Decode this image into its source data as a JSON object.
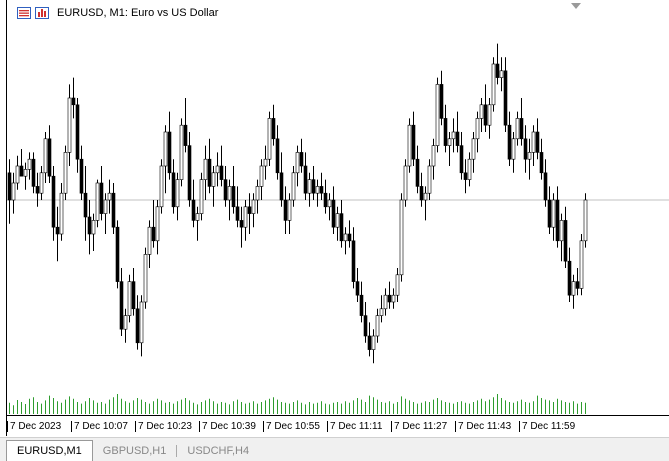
{
  "window": {
    "title": "EURUSD, M1:  Euro vs US Dollar"
  },
  "icons": {
    "menu": "chart-window-menu-icon",
    "chart": "bar-chart-icon",
    "scroll": "scroll-marker-triangle-icon"
  },
  "colors": {
    "candle_up_body": "#ffffff",
    "candle_down_body": "#000000",
    "candle_outline": "#000000",
    "volume": "#2e9c2e",
    "price_line": "#c0c0c0",
    "grid_line": "#000000"
  },
  "time_axis": {
    "labels": [
      "7 Dec 2023",
      "7 Dec 10:07",
      "7 Dec 10:23",
      "7 Dec 10:39",
      "7 Dec 10:55",
      "7 Dec 11:11",
      "7 Dec 11:27",
      "7 Dec 11:43",
      "7 Dec 11:59"
    ]
  },
  "tabs": [
    {
      "label": "EURUSD,M1",
      "active": true
    },
    {
      "label": "GBPUSD,H1",
      "active": false
    },
    {
      "label": "USDCHF,H4",
      "active": false
    }
  ],
  "chart_data": {
    "type": "candlestick",
    "symbol": "EURUSD",
    "timeframe": "M1",
    "bid_level": 0.5,
    "candles": [
      [
        0.58,
        0.62,
        0.43,
        0.5
      ],
      [
        0.5,
        0.58,
        0.46,
        0.55
      ],
      [
        0.55,
        0.63,
        0.53,
        0.6
      ],
      [
        0.6,
        0.65,
        0.57,
        0.57
      ],
      [
        0.57,
        0.61,
        0.53,
        0.59
      ],
      [
        0.59,
        0.64,
        0.56,
        0.62
      ],
      [
        0.62,
        0.64,
        0.52,
        0.54
      ],
      [
        0.54,
        0.58,
        0.48,
        0.52
      ],
      [
        0.52,
        0.6,
        0.5,
        0.58
      ],
      [
        0.58,
        0.7,
        0.55,
        0.68
      ],
      [
        0.68,
        0.72,
        0.55,
        0.57
      ],
      [
        0.57,
        0.6,
        0.38,
        0.42
      ],
      [
        0.42,
        0.48,
        0.32,
        0.4
      ],
      [
        0.4,
        0.55,
        0.38,
        0.52
      ],
      [
        0.52,
        0.66,
        0.5,
        0.64
      ],
      [
        0.64,
        0.84,
        0.6,
        0.8
      ],
      [
        0.8,
        0.86,
        0.74,
        0.78
      ],
      [
        0.78,
        0.8,
        0.58,
        0.62
      ],
      [
        0.62,
        0.66,
        0.5,
        0.52
      ],
      [
        0.52,
        0.6,
        0.38,
        0.45
      ],
      [
        0.45,
        0.5,
        0.34,
        0.4
      ],
      [
        0.4,
        0.46,
        0.35,
        0.44
      ],
      [
        0.44,
        0.56,
        0.42,
        0.55
      ],
      [
        0.55,
        0.6,
        0.44,
        0.46
      ],
      [
        0.46,
        0.52,
        0.4,
        0.5
      ],
      [
        0.5,
        0.56,
        0.46,
        0.52
      ],
      [
        0.52,
        0.55,
        0.4,
        0.42
      ],
      [
        0.42,
        0.44,
        0.24,
        0.26
      ],
      [
        0.26,
        0.3,
        0.1,
        0.12
      ],
      [
        0.12,
        0.18,
        0.08,
        0.16
      ],
      [
        0.16,
        0.28,
        0.14,
        0.26
      ],
      [
        0.26,
        0.3,
        0.16,
        0.18
      ],
      [
        0.18,
        0.22,
        0.06,
        0.08
      ],
      [
        0.08,
        0.22,
        0.04,
        0.2
      ],
      [
        0.2,
        0.36,
        0.18,
        0.34
      ],
      [
        0.34,
        0.44,
        0.3,
        0.42
      ],
      [
        0.42,
        0.5,
        0.36,
        0.38
      ],
      [
        0.38,
        0.5,
        0.34,
        0.48
      ],
      [
        0.48,
        0.62,
        0.46,
        0.6
      ],
      [
        0.6,
        0.72,
        0.52,
        0.7
      ],
      [
        0.7,
        0.76,
        0.56,
        0.58
      ],
      [
        0.58,
        0.62,
        0.46,
        0.48
      ],
      [
        0.48,
        0.58,
        0.44,
        0.56
      ],
      [
        0.56,
        0.74,
        0.54,
        0.72
      ],
      [
        0.72,
        0.8,
        0.64,
        0.66
      ],
      [
        0.66,
        0.7,
        0.48,
        0.5
      ],
      [
        0.5,
        0.56,
        0.42,
        0.44
      ],
      [
        0.44,
        0.48,
        0.38,
        0.46
      ],
      [
        0.46,
        0.58,
        0.44,
        0.56
      ],
      [
        0.56,
        0.66,
        0.5,
        0.62
      ],
      [
        0.62,
        0.68,
        0.52,
        0.54
      ],
      [
        0.54,
        0.6,
        0.48,
        0.58
      ],
      [
        0.58,
        0.64,
        0.54,
        0.6
      ],
      [
        0.6,
        0.66,
        0.54,
        0.56
      ],
      [
        0.56,
        0.6,
        0.48,
        0.5
      ],
      [
        0.5,
        0.56,
        0.44,
        0.54
      ],
      [
        0.54,
        0.6,
        0.46,
        0.48
      ],
      [
        0.48,
        0.54,
        0.42,
        0.44
      ],
      [
        0.44,
        0.48,
        0.36,
        0.42
      ],
      [
        0.42,
        0.5,
        0.38,
        0.48
      ],
      [
        0.48,
        0.52,
        0.4,
        0.46
      ],
      [
        0.46,
        0.52,
        0.42,
        0.5
      ],
      [
        0.5,
        0.56,
        0.46,
        0.54
      ],
      [
        0.54,
        0.62,
        0.5,
        0.6
      ],
      [
        0.6,
        0.66,
        0.56,
        0.62
      ],
      [
        0.62,
        0.76,
        0.6,
        0.74
      ],
      [
        0.74,
        0.78,
        0.66,
        0.68
      ],
      [
        0.68,
        0.72,
        0.56,
        0.58
      ],
      [
        0.58,
        0.64,
        0.48,
        0.5
      ],
      [
        0.5,
        0.54,
        0.4,
        0.44
      ],
      [
        0.44,
        0.52,
        0.4,
        0.5
      ],
      [
        0.5,
        0.6,
        0.48,
        0.58
      ],
      [
        0.58,
        0.66,
        0.54,
        0.64
      ],
      [
        0.64,
        0.68,
        0.58,
        0.6
      ],
      [
        0.6,
        0.64,
        0.5,
        0.52
      ],
      [
        0.52,
        0.58,
        0.48,
        0.56
      ],
      [
        0.56,
        0.6,
        0.5,
        0.52
      ],
      [
        0.52,
        0.56,
        0.48,
        0.54
      ],
      [
        0.54,
        0.58,
        0.5,
        0.52
      ],
      [
        0.52,
        0.56,
        0.46,
        0.48
      ],
      [
        0.48,
        0.52,
        0.44,
        0.5
      ],
      [
        0.5,
        0.54,
        0.4,
        0.42
      ],
      [
        0.42,
        0.48,
        0.38,
        0.46
      ],
      [
        0.46,
        0.5,
        0.36,
        0.38
      ],
      [
        0.38,
        0.42,
        0.34,
        0.4
      ],
      [
        0.4,
        0.44,
        0.36,
        0.38
      ],
      [
        0.38,
        0.42,
        0.24,
        0.26
      ],
      [
        0.26,
        0.3,
        0.2,
        0.22
      ],
      [
        0.22,
        0.26,
        0.14,
        0.16
      ],
      [
        0.16,
        0.2,
        0.08,
        0.1
      ],
      [
        0.1,
        0.14,
        0.04,
        0.06
      ],
      [
        0.06,
        0.12,
        0.02,
        0.1
      ],
      [
        0.1,
        0.18,
        0.08,
        0.16
      ],
      [
        0.16,
        0.22,
        0.14,
        0.18
      ],
      [
        0.18,
        0.24,
        0.16,
        0.22
      ],
      [
        0.22,
        0.26,
        0.18,
        0.2
      ],
      [
        0.2,
        0.24,
        0.18,
        0.22
      ],
      [
        0.22,
        0.3,
        0.2,
        0.28
      ],
      [
        0.28,
        0.52,
        0.26,
        0.5
      ],
      [
        0.5,
        0.62,
        0.48,
        0.6
      ],
      [
        0.6,
        0.74,
        0.58,
        0.72
      ],
      [
        0.72,
        0.76,
        0.6,
        0.62
      ],
      [
        0.62,
        0.66,
        0.52,
        0.54
      ],
      [
        0.54,
        0.58,
        0.48,
        0.5
      ],
      [
        0.5,
        0.54,
        0.44,
        0.52
      ],
      [
        0.52,
        0.62,
        0.5,
        0.6
      ],
      [
        0.6,
        0.68,
        0.56,
        0.66
      ],
      [
        0.66,
        0.86,
        0.64,
        0.84
      ],
      [
        0.84,
        0.88,
        0.72,
        0.74
      ],
      [
        0.74,
        0.78,
        0.64,
        0.66
      ],
      [
        0.66,
        0.7,
        0.6,
        0.68
      ],
      [
        0.68,
        0.74,
        0.64,
        0.7
      ],
      [
        0.7,
        0.76,
        0.64,
        0.66
      ],
      [
        0.66,
        0.7,
        0.56,
        0.58
      ],
      [
        0.58,
        0.62,
        0.52,
        0.56
      ],
      [
        0.56,
        0.64,
        0.54,
        0.62
      ],
      [
        0.62,
        0.7,
        0.58,
        0.68
      ],
      [
        0.68,
        0.76,
        0.64,
        0.74
      ],
      [
        0.74,
        0.8,
        0.7,
        0.78
      ],
      [
        0.78,
        0.84,
        0.7,
        0.72
      ],
      [
        0.72,
        0.8,
        0.68,
        0.78
      ],
      [
        0.78,
        0.92,
        0.76,
        0.9
      ],
      [
        0.9,
        0.96,
        0.84,
        0.86
      ],
      [
        0.86,
        0.92,
        0.82,
        0.88
      ],
      [
        0.88,
        0.92,
        0.7,
        0.72
      ],
      [
        0.72,
        0.76,
        0.6,
        0.62
      ],
      [
        0.62,
        0.7,
        0.58,
        0.68
      ],
      [
        0.68,
        0.76,
        0.66,
        0.74
      ],
      [
        0.74,
        0.8,
        0.66,
        0.68
      ],
      [
        0.68,
        0.72,
        0.58,
        0.62
      ],
      [
        0.62,
        0.68,
        0.56,
        0.64
      ],
      [
        0.64,
        0.72,
        0.6,
        0.7
      ],
      [
        0.7,
        0.74,
        0.62,
        0.64
      ],
      [
        0.64,
        0.68,
        0.56,
        0.58
      ],
      [
        0.58,
        0.62,
        0.48,
        0.5
      ],
      [
        0.5,
        0.54,
        0.4,
        0.42
      ],
      [
        0.42,
        0.52,
        0.38,
        0.5
      ],
      [
        0.5,
        0.54,
        0.36,
        0.38
      ],
      [
        0.38,
        0.46,
        0.32,
        0.44
      ],
      [
        0.44,
        0.48,
        0.3,
        0.32
      ],
      [
        0.32,
        0.36,
        0.2,
        0.22
      ],
      [
        0.22,
        0.28,
        0.18,
        0.26
      ],
      [
        0.26,
        0.3,
        0.22,
        0.24
      ],
      [
        0.24,
        0.4,
        0.22,
        0.38
      ],
      [
        0.38,
        0.52,
        0.36,
        0.5
      ]
    ],
    "volume": [
      0.28,
      0.22,
      0.35,
      0.3,
      0.25,
      0.38,
      0.42,
      0.3,
      0.26,
      0.34,
      0.46,
      0.4,
      0.32,
      0.28,
      0.36,
      0.44,
      0.38,
      0.3,
      0.26,
      0.32,
      0.4,
      0.34,
      0.28,
      0.3,
      0.26,
      0.36,
      0.42,
      0.5,
      0.38,
      0.32,
      0.28,
      0.34,
      0.4,
      0.36,
      0.3,
      0.26,
      0.32,
      0.38,
      0.34,
      0.28,
      0.3,
      0.26,
      0.32,
      0.36,
      0.4,
      0.34,
      0.28,
      0.24,
      0.3,
      0.34,
      0.38,
      0.32,
      0.26,
      0.3,
      0.28,
      0.24,
      0.32,
      0.36,
      0.3,
      0.26,
      0.28,
      0.32,
      0.26,
      0.3,
      0.34,
      0.38,
      0.42,
      0.36,
      0.3,
      0.28,
      0.26,
      0.3,
      0.34,
      0.28,
      0.24,
      0.3,
      0.26,
      0.28,
      0.32,
      0.26,
      0.24,
      0.28,
      0.3,
      0.26,
      0.32,
      0.28,
      0.34,
      0.4,
      0.36,
      0.3,
      0.46,
      0.42,
      0.36,
      0.3,
      0.28,
      0.32,
      0.26,
      0.3,
      0.44,
      0.38,
      0.34,
      0.3,
      0.26,
      0.28,
      0.32,
      0.3,
      0.36,
      0.4,
      0.34,
      0.3,
      0.28,
      0.26,
      0.3,
      0.32,
      0.28,
      0.26,
      0.3,
      0.34,
      0.38,
      0.32,
      0.36,
      0.42,
      0.5,
      0.4,
      0.34,
      0.3,
      0.28,
      0.32,
      0.36,
      0.3,
      0.28,
      0.32,
      0.46,
      0.4,
      0.36,
      0.34,
      0.3,
      0.38,
      0.34,
      0.3,
      0.28,
      0.32,
      0.26,
      0.3,
      0.28
    ]
  }
}
